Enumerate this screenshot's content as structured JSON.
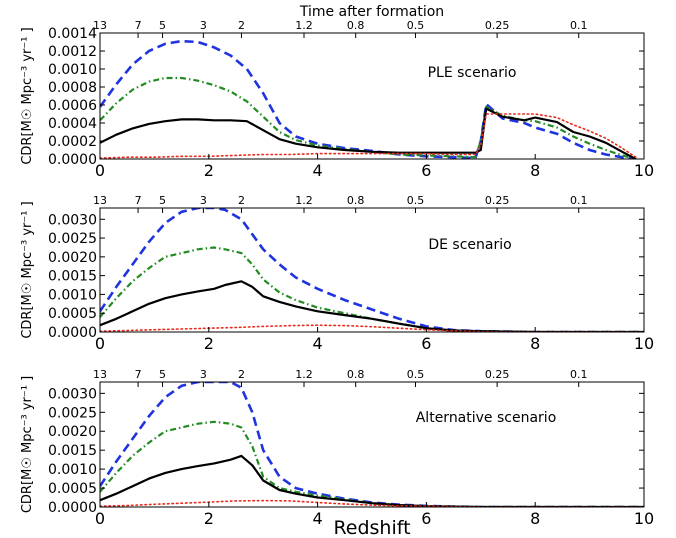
{
  "figure": {
    "top_axis_title": "Time after formation",
    "xlabel": "Redshift",
    "top_tick_labels": [
      "13",
      "7",
      "5",
      "3",
      "2",
      "1.2",
      "0.8",
      "0.5",
      "0.25",
      "0.1"
    ],
    "top_tick_redshifts": [
      0,
      0.7,
      1.15,
      1.9,
      2.6,
      3.75,
      4.7,
      5.8,
      7.3,
      8.8
    ]
  },
  "chart_data": [
    {
      "type": "line",
      "title": "PLE scenario",
      "ylabel": "CDR[M☉ Mpc⁻³ yr⁻¹ ]",
      "xlim": [
        0,
        10
      ],
      "ylim": [
        0,
        0.0014
      ],
      "xticks": [
        0,
        2,
        4,
        6,
        8,
        10
      ],
      "yticks": [
        0,
        0.0002,
        0.0004,
        0.0006,
        0.0008,
        0.001,
        0.0012,
        0.0014
      ],
      "ytick_labels": [
        "0.0000",
        "0.0002",
        "0.0004",
        "0.0006",
        "0.0008",
        "0.0010",
        "0.0012",
        "0.0014"
      ],
      "grid": false,
      "series": [
        {
          "color": "#1f33e0",
          "style": "dashed",
          "x": [
            0,
            0.3,
            0.6,
            0.9,
            1.2,
            1.5,
            1.8,
            2.1,
            2.4,
            2.7,
            3.0,
            3.3,
            3.6,
            4.0,
            4.5,
            5.0,
            5.5,
            6.0,
            6.5,
            6.9,
            7.0,
            7.1,
            7.4,
            7.8,
            8.0,
            8.4,
            8.7,
            9.0,
            9.3,
            9.6,
            9.85
          ],
          "y": [
            0.00058,
            0.00083,
            0.00105,
            0.0012,
            0.00128,
            0.00131,
            0.0013,
            0.00124,
            0.00115,
            0.001,
            0.00073,
            0.0004,
            0.00025,
            0.00017,
            0.00012,
            9e-05,
            5e-05,
            3e-05,
            2e-05,
            1e-05,
            0.0002,
            0.00061,
            0.00045,
            0.0004,
            0.00035,
            0.00028,
            0.00018,
            0.0001,
            5e-05,
            2e-05,
            0
          ]
        },
        {
          "color": "#228b22",
          "style": "dashdot",
          "x": [
            0,
            0.3,
            0.6,
            0.9,
            1.2,
            1.5,
            1.8,
            2.1,
            2.4,
            2.7,
            3.0,
            3.3,
            3.6,
            4.0,
            4.5,
            5.0,
            5.5,
            6.0,
            6.5,
            6.9,
            7.0,
            7.1,
            7.4,
            7.8,
            8.0,
            8.4,
            8.7,
            9.0,
            9.3,
            9.6,
            9.85
          ],
          "y": [
            0.00043,
            0.00062,
            0.00077,
            0.00086,
            0.0009,
            0.0009,
            0.00087,
            0.00082,
            0.00075,
            0.00064,
            0.00047,
            0.0003,
            0.00021,
            0.00015,
            0.00011,
            8e-05,
            5e-05,
            4e-05,
            3e-05,
            2e-05,
            0.0002,
            0.00058,
            0.00048,
            0.00043,
            0.00042,
            0.00035,
            0.00025,
            0.00017,
            0.0001,
            4e-05,
            0
          ]
        },
        {
          "color": "#000000",
          "style": "solid",
          "x": [
            0,
            0.3,
            0.6,
            0.9,
            1.2,
            1.5,
            1.8,
            2.1,
            2.4,
            2.7,
            3.0,
            3.3,
            3.6,
            4.0,
            4.5,
            5.0,
            5.5,
            6.0,
            6.5,
            6.9,
            7.0,
            7.1,
            7.4,
            7.8,
            8.0,
            8.4,
            8.7,
            9.0,
            9.3,
            9.6,
            9.85
          ],
          "y": [
            0.00018,
            0.00027,
            0.00034,
            0.00039,
            0.00042,
            0.00044,
            0.00044,
            0.00043,
            0.00043,
            0.00042,
            0.00032,
            0.00022,
            0.00017,
            0.00013,
            0.0001,
            8e-05,
            7e-05,
            7e-05,
            7e-05,
            7e-05,
            0.0001,
            0.00056,
            0.00047,
            0.00043,
            0.00046,
            0.00041,
            0.0003,
            0.00025,
            0.00018,
            8e-05,
            0
          ]
        },
        {
          "color": "#e8291c",
          "style": "dotted",
          "x": [
            0,
            0.5,
            1.0,
            1.5,
            2.0,
            2.5,
            3.0,
            3.5,
            4.0,
            4.5,
            5.0,
            5.5,
            6.0,
            6.5,
            6.9,
            7.0,
            7.1,
            7.4,
            7.8,
            8.0,
            8.4,
            8.7,
            9.0,
            9.3,
            9.6,
            9.85
          ],
          "y": [
            1e-05,
            2e-05,
            2e-05,
            3e-05,
            3e-05,
            4e-05,
            5e-05,
            5e-05,
            6e-05,
            6e-05,
            6e-05,
            6e-05,
            6e-05,
            5e-05,
            5e-05,
            0.00015,
            0.0005,
            0.0005,
            0.0005,
            0.0005,
            0.00046,
            0.00038,
            0.00031,
            0.00023,
            0.00012,
            2e-05
          ]
        }
      ]
    },
    {
      "type": "line",
      "title": "DE scenario",
      "ylabel": "CDR[M☉ Mpc⁻³ yr⁻¹ ]",
      "xlim": [
        0,
        10
      ],
      "ylim": [
        0,
        0.0033
      ],
      "xticks": [
        0,
        2,
        4,
        6,
        8,
        10
      ],
      "yticks": [
        0,
        0.0005,
        0.001,
        0.0015,
        0.002,
        0.0025,
        0.003
      ],
      "ytick_labels": [
        "0.0000",
        "0.0005",
        "0.0010",
        "0.0015",
        "0.0020",
        "0.0025",
        "0.0030"
      ],
      "grid": false,
      "series": [
        {
          "color": "#1f33e0",
          "style": "dashed",
          "x": [
            0,
            0.3,
            0.6,
            0.9,
            1.2,
            1.5,
            1.8,
            2.1,
            2.3,
            2.6,
            2.8,
            3.0,
            3.3,
            3.6,
            4.0,
            4.5,
            5.0,
            5.5,
            6.0,
            6.5,
            7.0,
            7.5,
            8.0,
            8.5,
            9.0,
            9.5,
            10.0
          ],
          "y": [
            0.00055,
            0.0012,
            0.0018,
            0.0024,
            0.0029,
            0.0032,
            0.0033,
            0.0033,
            0.00325,
            0.003,
            0.0026,
            0.0022,
            0.0018,
            0.00145,
            0.00115,
            0.00085,
            0.0006,
            0.00035,
            0.00015,
            5e-05,
            2e-05,
            1e-05,
            0,
            0,
            0,
            0,
            0
          ]
        },
        {
          "color": "#228b22",
          "style": "dashdot",
          "x": [
            0,
            0.3,
            0.6,
            0.9,
            1.2,
            1.5,
            1.8,
            2.1,
            2.3,
            2.6,
            2.8,
            3.0,
            3.3,
            3.6,
            4.0,
            4.5,
            5.0,
            5.5,
            6.0,
            6.5,
            7.0,
            7.5,
            8.0,
            8.5,
            9.0,
            9.5,
            10.0
          ],
          "y": [
            0.0004,
            0.0009,
            0.00135,
            0.0017,
            0.002,
            0.0021,
            0.0022,
            0.00225,
            0.0022,
            0.0021,
            0.0018,
            0.0014,
            0.00105,
            0.00085,
            0.00065,
            0.0005,
            0.00035,
            0.00022,
            0.0001,
            4e-05,
            2e-05,
            1e-05,
            0,
            0,
            0,
            0,
            0
          ]
        },
        {
          "color": "#000000",
          "style": "solid",
          "x": [
            0,
            0.3,
            0.6,
            0.9,
            1.2,
            1.5,
            1.8,
            2.1,
            2.3,
            2.6,
            2.8,
            3.0,
            3.3,
            3.6,
            4.0,
            4.5,
            5.0,
            5.5,
            6.0,
            6.5,
            7.0,
            7.5,
            8.0,
            8.5,
            9.0,
            9.5,
            10.0
          ],
          "y": [
            0.00018,
            0.00035,
            0.00055,
            0.00075,
            0.0009,
            0.001,
            0.00108,
            0.00115,
            0.00125,
            0.00135,
            0.0012,
            0.00095,
            0.0008,
            0.00068,
            0.00055,
            0.00045,
            0.00035,
            0.00022,
            0.0001,
            4e-05,
            2e-05,
            1e-05,
            0,
            0,
            0,
            0,
            0
          ]
        },
        {
          "color": "#e8291c",
          "style": "dotted",
          "x": [
            0,
            0.5,
            1.0,
            1.5,
            2.0,
            2.5,
            3.0,
            3.5,
            4.0,
            4.5,
            5.0,
            5.5,
            6.0,
            6.5,
            7.0,
            7.5,
            8.0,
            8.5,
            9.0,
            9.5,
            10.0
          ],
          "y": [
            2e-05,
            4e-05,
            6e-05,
            8e-05,
            0.0001,
            0.00012,
            0.00015,
            0.00017,
            0.00018,
            0.00017,
            0.00014,
            0.0001,
            6e-05,
            3e-05,
            1e-05,
            0,
            0,
            0,
            0,
            0,
            0
          ]
        }
      ]
    },
    {
      "type": "line",
      "title": "Alternative scenario",
      "ylabel": "CDR[M☉ Mpc⁻³ yr⁻¹ ]",
      "xlim": [
        0,
        10
      ],
      "ylim": [
        0,
        0.0033
      ],
      "xticks": [
        0,
        2,
        4,
        6,
        8,
        10
      ],
      "yticks": [
        0,
        0.0005,
        0.001,
        0.0015,
        0.002,
        0.0025,
        0.003
      ],
      "ytick_labels": [
        "0.0000",
        "0.0005",
        "0.0010",
        "0.0015",
        "0.0020",
        "0.0025",
        "0.0030"
      ],
      "grid": false,
      "series": [
        {
          "color": "#1f33e0",
          "style": "dashed",
          "x": [
            0,
            0.3,
            0.6,
            0.9,
            1.2,
            1.5,
            1.8,
            2.1,
            2.4,
            2.6,
            2.8,
            3.0,
            3.3,
            3.6,
            4.0,
            4.5,
            5.0,
            5.5,
            6.0,
            6.5,
            7.0,
            7.5,
            8.0,
            8.5,
            9.0,
            9.5,
            10.0
          ],
          "y": [
            0.00055,
            0.0012,
            0.0018,
            0.0024,
            0.0029,
            0.0032,
            0.0033,
            0.0033,
            0.0033,
            0.00315,
            0.0025,
            0.0015,
            0.0008,
            0.0005,
            0.00035,
            0.00022,
            0.00012,
            6e-05,
            3e-05,
            1e-05,
            0,
            0,
            0,
            0,
            0,
            0,
            0
          ]
        },
        {
          "color": "#228b22",
          "style": "dashdot",
          "x": [
            0,
            0.3,
            0.6,
            0.9,
            1.2,
            1.5,
            1.8,
            2.1,
            2.4,
            2.6,
            2.8,
            3.0,
            3.3,
            3.6,
            4.0,
            4.5,
            5.0,
            5.5,
            6.0,
            6.5,
            7.0,
            7.5,
            8.0,
            8.5,
            9.0,
            9.5,
            10.0
          ],
          "y": [
            0.0004,
            0.0009,
            0.00135,
            0.0017,
            0.002,
            0.0021,
            0.0022,
            0.00225,
            0.0022,
            0.0021,
            0.0016,
            0.0008,
            0.0005,
            0.0004,
            0.0003,
            0.0002,
            0.0001,
            5e-05,
            2e-05,
            1e-05,
            0,
            0,
            0,
            0,
            0,
            0,
            0
          ]
        },
        {
          "color": "#000000",
          "style": "solid",
          "x": [
            0,
            0.3,
            0.6,
            0.9,
            1.2,
            1.5,
            1.8,
            2.1,
            2.4,
            2.6,
            2.8,
            3.0,
            3.3,
            3.6,
            4.0,
            4.5,
            5.0,
            5.5,
            6.0,
            6.5,
            7.0,
            7.5,
            8.0,
            8.5,
            9.0,
            9.5,
            10.0
          ],
          "y": [
            0.00018,
            0.00035,
            0.00055,
            0.00075,
            0.0009,
            0.001,
            0.00108,
            0.00115,
            0.00125,
            0.00135,
            0.0011,
            0.0007,
            0.00045,
            0.00035,
            0.00025,
            0.00018,
            0.0001,
            5e-05,
            2e-05,
            1e-05,
            0,
            0,
            0,
            0,
            0,
            0,
            0
          ]
        },
        {
          "color": "#e8291c",
          "style": "dotted",
          "x": [
            0,
            0.5,
            1.0,
            1.5,
            2.0,
            2.5,
            3.0,
            3.5,
            4.0,
            4.5,
            5.0,
            5.5,
            6.0,
            6.5,
            7.0,
            7.5,
            8.0,
            8.5,
            9.0,
            9.5,
            10.0
          ],
          "y": [
            2e-05,
            4e-05,
            7e-05,
            0.0001,
            0.00013,
            0.00016,
            0.00017,
            0.00016,
            0.00012,
            8e-05,
            5e-05,
            3e-05,
            2e-05,
            1e-05,
            0,
            0,
            0,
            0,
            0,
            0,
            0
          ]
        }
      ]
    }
  ]
}
